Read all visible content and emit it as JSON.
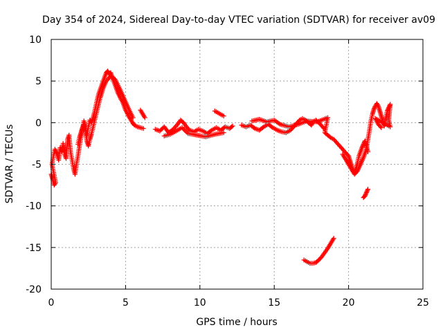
{
  "chart_data": {
    "type": "scatter",
    "title": "Day 354 of 2024, Sidereal Day-to-day VTEC variation (SDTVAR) for receiver av09",
    "xlabel": "GPS time / hours",
    "ylabel": "SDTVAR / TECUs",
    "xlim": [
      0,
      25
    ],
    "ylim": [
      -20,
      10
    ],
    "xticks": [
      0,
      5,
      10,
      15,
      20,
      25
    ],
    "yticks": [
      -20,
      -15,
      -10,
      -5,
      0,
      5,
      10
    ],
    "grid": true,
    "marker": "+",
    "color": "#ff0000",
    "series": [
      {
        "name": "av09",
        "segments": [
          [
            [
              0.0,
              -6.2
            ],
            [
              0.1,
              -6.8
            ],
            [
              0.2,
              -7.5
            ],
            [
              0.3,
              -7.2
            ],
            [
              0.05,
              -5.0
            ],
            [
              0.15,
              -4.0
            ],
            [
              0.25,
              -3.2
            ],
            [
              0.4,
              -3.8
            ],
            [
              0.5,
              -4.5
            ],
            [
              0.6,
              -3.0
            ],
            [
              0.7,
              -3.5
            ],
            [
              0.8,
              -2.5
            ],
            [
              0.9,
              -3.8
            ],
            [
              1.0,
              -4.3
            ],
            [
              1.1,
              -2.0
            ],
            [
              1.2,
              -1.5
            ],
            [
              1.3,
              -3.5
            ],
            [
              1.4,
              -4.5
            ],
            [
              1.5,
              -5.5
            ],
            [
              1.6,
              -6.2
            ],
            [
              1.7,
              -5.0
            ],
            [
              1.8,
              -4.0
            ],
            [
              1.9,
              -2.8
            ],
            [
              2.0,
              -1.8
            ],
            [
              2.1,
              -0.8
            ],
            [
              2.2,
              0.2
            ],
            [
              2.3,
              -0.5
            ],
            [
              2.4,
              -1.5
            ],
            [
              2.5,
              -0.5
            ],
            [
              2.6,
              0.3
            ],
            [
              2.7,
              0.0
            ],
            [
              2.8,
              0.5
            ],
            [
              2.9,
              1.2
            ],
            [
              3.0,
              2.0
            ],
            [
              3.1,
              2.8
            ],
            [
              3.2,
              3.5
            ],
            [
              3.3,
              4.0
            ],
            [
              3.4,
              4.5
            ],
            [
              3.5,
              5.0
            ],
            [
              3.6,
              5.5
            ],
            [
              3.7,
              6.0
            ],
            [
              3.8,
              6.2
            ],
            [
              3.9,
              5.8
            ],
            [
              4.0,
              6.0
            ],
            [
              4.1,
              5.5
            ],
            [
              4.2,
              5.0
            ],
            [
              4.3,
              4.5
            ],
            [
              4.4,
              4.0
            ],
            [
              4.5,
              3.5
            ],
            [
              4.6,
              3.2
            ],
            [
              4.7,
              2.8
            ],
            [
              4.8,
              2.5
            ],
            [
              4.9,
              2.0
            ],
            [
              5.0,
              1.5
            ],
            [
              5.1,
              1.2
            ],
            [
              5.2,
              0.8
            ],
            [
              5.3,
              0.5
            ],
            [
              5.4,
              0.2
            ],
            [
              5.5,
              -0.1
            ],
            [
              5.6,
              -0.3
            ],
            [
              5.8,
              -0.5
            ],
            [
              6.0,
              -0.6
            ],
            [
              6.2,
              -0.7
            ]
          ],
          [
            [
              1.8,
              -2.6
            ],
            [
              1.9,
              -1.8
            ],
            [
              2.0,
              -1.2
            ],
            [
              2.1,
              -0.6
            ],
            [
              2.2,
              -0.2
            ],
            [
              2.3,
              -0.9
            ],
            [
              2.4,
              -2.2
            ],
            [
              2.5,
              -2.8
            ],
            [
              2.6,
              -2.0
            ],
            [
              2.7,
              -1.4
            ],
            [
              3.1,
              1.6
            ],
            [
              3.3,
              3.0
            ],
            [
              3.5,
              4.2
            ],
            [
              3.7,
              5.0
            ],
            [
              4.0,
              5.6
            ],
            [
              4.3,
              5.2
            ],
            [
              4.6,
              4.1
            ],
            [
              4.9,
              2.9
            ],
            [
              5.2,
              1.7
            ],
            [
              5.5,
              0.6
            ]
          ],
          [
            [
              6.0,
              1.5
            ],
            [
              6.1,
              1.2
            ],
            [
              6.2,
              0.9
            ],
            [
              6.3,
              0.6
            ]
          ],
          [
            [
              7.0,
              -0.8
            ],
            [
              7.3,
              -1.0
            ],
            [
              7.6,
              -0.5
            ],
            [
              7.9,
              -1.2
            ],
            [
              8.2,
              -0.8
            ],
            [
              8.5,
              -0.2
            ],
            [
              8.7,
              0.3
            ],
            [
              8.9,
              0.0
            ],
            [
              9.1,
              -0.5
            ],
            [
              9.3,
              -0.9
            ],
            [
              9.6,
              -1.1
            ],
            [
              9.9,
              -0.8
            ],
            [
              10.2,
              -1.0
            ],
            [
              10.5,
              -1.3
            ],
            [
              10.8,
              -0.9
            ],
            [
              11.1,
              -0.6
            ],
            [
              11.4,
              -0.9
            ],
            [
              11.7,
              -0.5
            ],
            [
              12.0,
              -0.7
            ],
            [
              12.2,
              -0.4
            ]
          ],
          [
            [
              7.6,
              -1.6
            ],
            [
              8.0,
              -1.4
            ],
            [
              8.4,
              -1.0
            ],
            [
              8.8,
              -0.6
            ],
            [
              9.2,
              -1.3
            ],
            [
              9.8,
              -1.5
            ],
            [
              10.4,
              -1.7
            ],
            [
              11.0,
              -1.4
            ],
            [
              11.6,
              -1.2
            ]
          ],
          [
            [
              11.0,
              1.4
            ],
            [
              11.2,
              1.2
            ],
            [
              11.4,
              1.0
            ],
            [
              11.6,
              0.8
            ]
          ],
          [
            [
              12.8,
              -0.3
            ],
            [
              13.1,
              -0.5
            ],
            [
              13.4,
              -0.3
            ],
            [
              13.7,
              -0.7
            ],
            [
              14.0,
              -0.9
            ],
            [
              14.3,
              -0.5
            ],
            [
              14.6,
              -0.2
            ],
            [
              14.9,
              -0.6
            ],
            [
              15.2,
              -0.9
            ],
            [
              15.5,
              -1.1
            ],
            [
              15.8,
              -1.2
            ],
            [
              16.1,
              -0.9
            ],
            [
              16.3,
              -0.5
            ],
            [
              16.5,
              -0.1
            ],
            [
              16.7,
              0.3
            ],
            [
              16.9,
              0.5
            ],
            [
              17.1,
              0.3
            ],
            [
              17.3,
              0.0
            ],
            [
              17.5,
              -0.3
            ],
            [
              17.6,
              0.1
            ],
            [
              17.8,
              0.3
            ],
            [
              18.0,
              0.0
            ],
            [
              18.2,
              -0.4
            ],
            [
              18.4,
              -0.8
            ]
          ],
          [
            [
              13.5,
              0.2
            ],
            [
              14.0,
              0.4
            ],
            [
              14.5,
              0.1
            ],
            [
              15.0,
              0.3
            ],
            [
              15.4,
              -0.2
            ],
            [
              16.0,
              -0.5
            ],
            [
              16.6,
              -0.2
            ],
            [
              17.2,
              0.2
            ],
            [
              17.9,
              0.1
            ],
            [
              18.6,
              0.6
            ],
            [
              18.4,
              -1.2
            ],
            [
              18.6,
              -1.5
            ],
            [
              18.8,
              -1.8
            ],
            [
              19.0,
              -2.0
            ],
            [
              19.2,
              -2.4
            ],
            [
              19.4,
              -2.8
            ],
            [
              19.6,
              -3.2
            ],
            [
              19.8,
              -3.6
            ],
            [
              20.0,
              -4.0
            ],
            [
              20.1,
              -4.6
            ],
            [
              20.2,
              -5.2
            ],
            [
              20.3,
              -5.8
            ],
            [
              20.4,
              -6.0
            ],
            [
              20.5,
              -5.5
            ],
            [
              20.6,
              -4.8
            ],
            [
              20.7,
              -4.0
            ],
            [
              20.8,
              -3.5
            ],
            [
              20.9,
              -3.0
            ],
            [
              21.0,
              -2.6
            ],
            [
              21.1,
              -2.2
            ],
            [
              21.2,
              -2.8
            ],
            [
              21.3,
              -3.5
            ]
          ],
          [
            [
              19.6,
              -3.8
            ],
            [
              19.8,
              -4.4
            ],
            [
              20.0,
              -5.0
            ],
            [
              20.2,
              -5.6
            ],
            [
              20.4,
              -6.2
            ],
            [
              20.6,
              -5.8
            ],
            [
              20.8,
              -5.0
            ],
            [
              21.0,
              -4.2
            ],
            [
              21.2,
              -3.2
            ],
            [
              21.3,
              -2.0
            ],
            [
              21.4,
              -1.0
            ],
            [
              21.5,
              0.2
            ],
            [
              21.6,
              1.0
            ],
            [
              21.7,
              1.6
            ],
            [
              21.8,
              2.0
            ],
            [
              21.9,
              2.3
            ],
            [
              22.0,
              2.0
            ],
            [
              22.1,
              1.4
            ],
            [
              22.2,
              0.8
            ],
            [
              22.3,
              0.2
            ],
            [
              22.4,
              -0.4
            ],
            [
              22.5,
              0.6
            ],
            [
              22.6,
              1.4
            ],
            [
              22.7,
              1.8
            ],
            [
              22.8,
              2.2
            ],
            [
              22.7,
              0.3
            ],
            [
              22.8,
              -0.5
            ],
            [
              21.8,
              0.5
            ],
            [
              22.0,
              -0.2
            ],
            [
              22.2,
              -0.6
            ]
          ],
          [
            [
              21.0,
              -9.0
            ],
            [
              21.1,
              -8.8
            ],
            [
              21.2,
              -8.4
            ],
            [
              21.3,
              -8.0
            ]
          ],
          [
            [
              17.0,
              -16.5
            ],
            [
              17.2,
              -16.7
            ],
            [
              17.4,
              -16.9
            ],
            [
              17.6,
              -16.9
            ],
            [
              17.8,
              -16.8
            ],
            [
              18.0,
              -16.5
            ],
            [
              18.2,
              -16.1
            ],
            [
              18.4,
              -15.6
            ],
            [
              18.6,
              -15.1
            ],
            [
              18.8,
              -14.5
            ],
            [
              19.0,
              -13.9
            ]
          ]
        ]
      }
    ]
  }
}
